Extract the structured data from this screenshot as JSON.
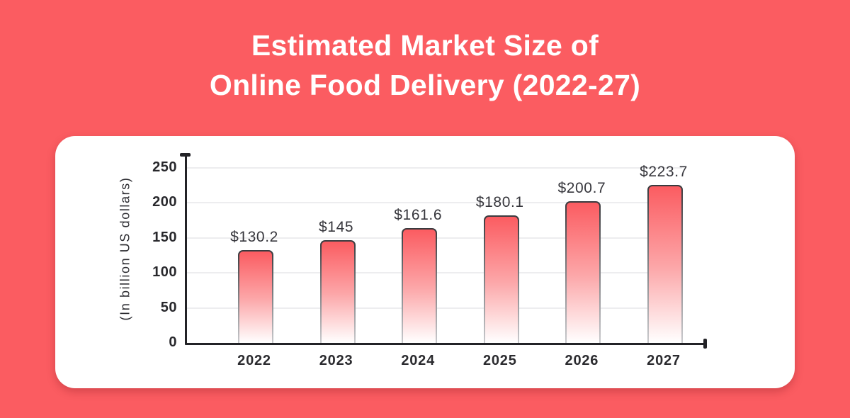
{
  "header": {
    "title_line1": "Estimated Market Size of",
    "title_line2": "Online Food Delivery (2022-27)"
  },
  "theme": {
    "background_color": "#FB5C61",
    "card_color": "#FFFFFF",
    "title_color": "#FFFFFF",
    "bar_gradient_top": "#FB5C61",
    "bar_gradient_mid": "#FCA7A9",
    "bar_gradient_bottom": "#FFFFFF",
    "bar_outline_top": "#3A3A3E",
    "bar_outline_bottom": "#C9C9CC",
    "axis_color": "#232327",
    "grid_color": "#EDEDEF",
    "text_color": "#313137"
  },
  "chart_data": {
    "type": "bar",
    "title": "Estimated Market Size of Online Food Delivery (2022-27)",
    "ylabel": "(In billion US dollars)",
    "xlabel": "",
    "categories": [
      "2022",
      "2023",
      "2024",
      "2025",
      "2026",
      "2027"
    ],
    "values": [
      130.2,
      145,
      161.6,
      180.1,
      200.7,
      223.7
    ],
    "value_labels": [
      "$130.2",
      "$145",
      "$161.6",
      "$180.1",
      "$200.7",
      "$223.7"
    ],
    "ylim": [
      0,
      250
    ],
    "yticks": [
      0,
      50,
      100,
      150,
      200,
      250
    ],
    "grid": "horizontal-only",
    "legend": "none"
  }
}
